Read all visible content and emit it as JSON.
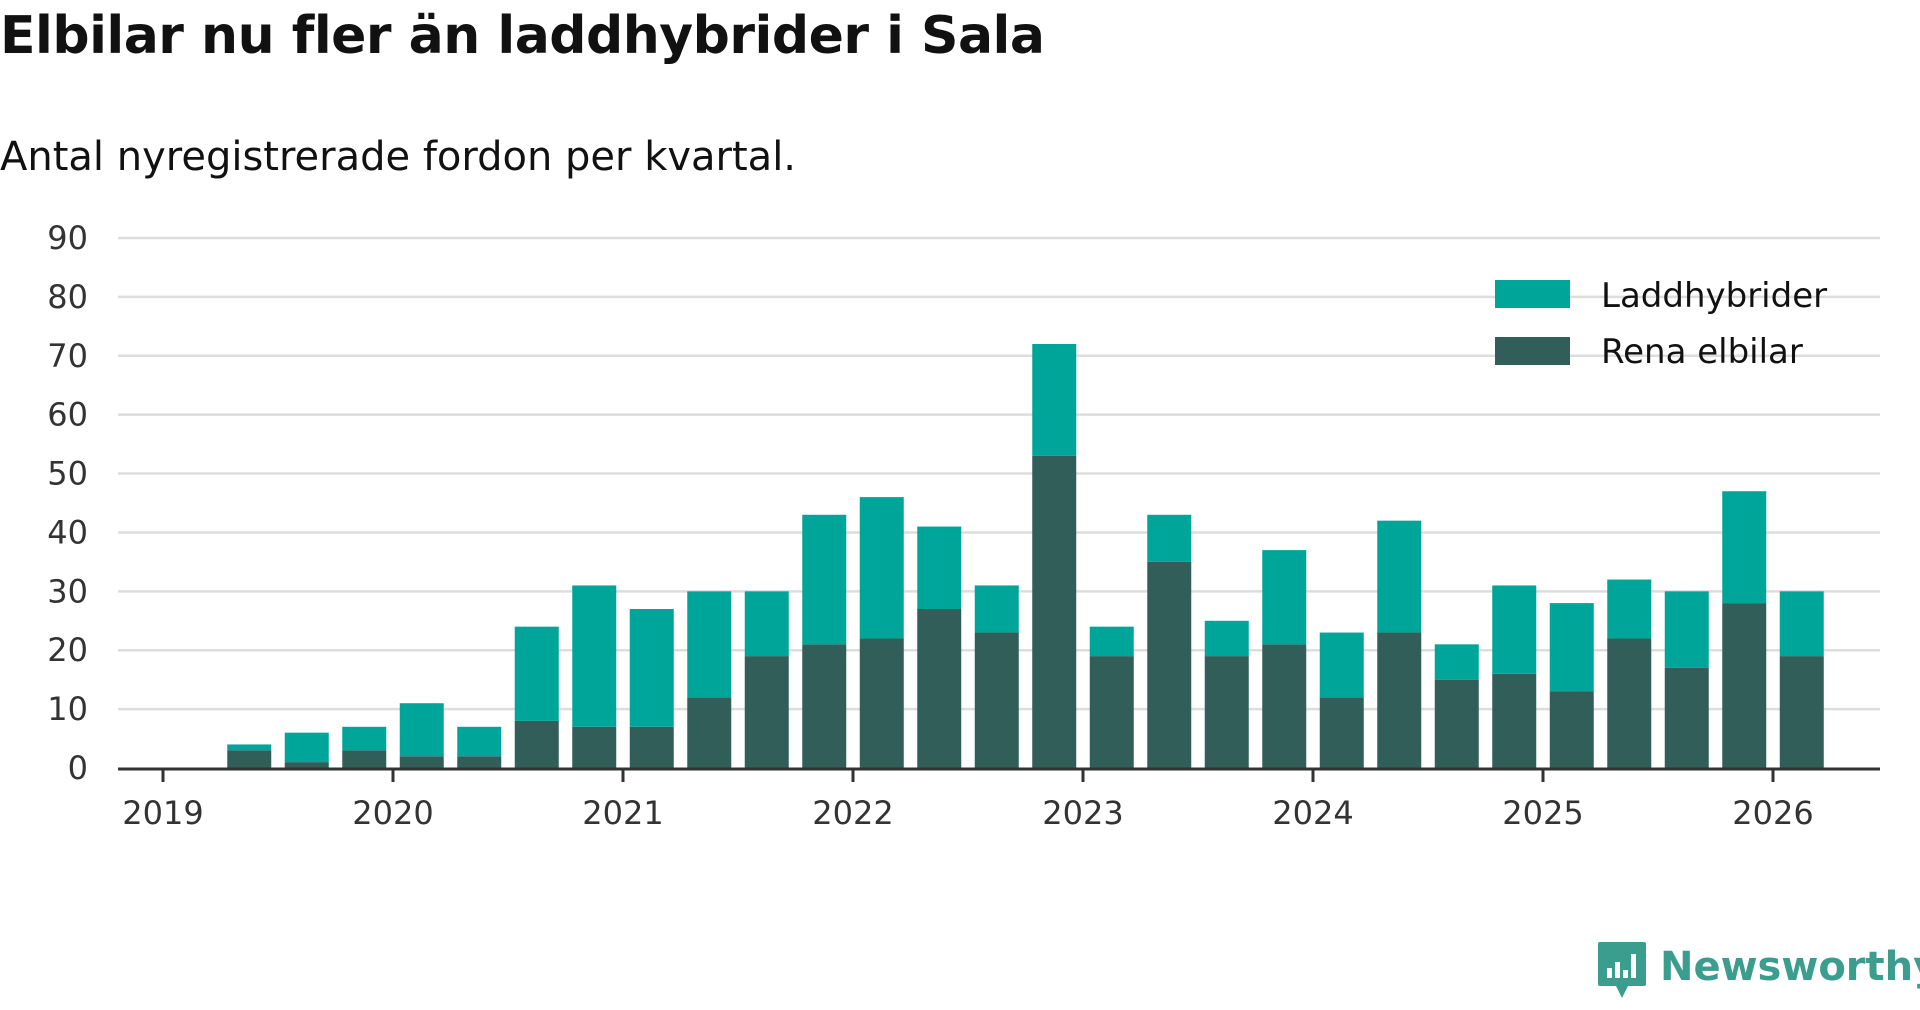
{
  "title": "Elbilar nu fler än laddhybrider i Sala",
  "subtitle": "Antal nyregistrerade fordon per kvartal.",
  "brand": "Newsworthy",
  "colors": {
    "laddhybrider": "#00a59a",
    "rena_elbilar": "#325e59",
    "grid": "#dddddd",
    "axis": "#333333"
  },
  "chart_data": {
    "type": "bar",
    "stacked": true,
    "x_tick_labels": [
      "2019",
      "2020",
      "2021",
      "2022",
      "2023",
      "2024",
      "2025",
      "2026"
    ],
    "ylim": [
      0,
      90
    ],
    "y_ticks": [
      0,
      10,
      20,
      30,
      40,
      50,
      60,
      70,
      80,
      90
    ],
    "categories": [
      "2019 Q1",
      "2019 Q2",
      "2019 Q3",
      "2019 Q4",
      "2020 Q1",
      "2020 Q2",
      "2020 Q3",
      "2020 Q4",
      "2021 Q1",
      "2021 Q2",
      "2021 Q3",
      "2021 Q4",
      "2022 Q1",
      "2022 Q2",
      "2022 Q3",
      "2022 Q4",
      "2023 Q1",
      "2023 Q2",
      "2023 Q3",
      "2023 Q4",
      "2024 Q1",
      "2024 Q2",
      "2024 Q3",
      "2024 Q4",
      "2025 Q1",
      "2025 Q2",
      "2025 Q3",
      "2025 Q4",
      "2026 Q1"
    ],
    "legend_position": "top-right",
    "series": [
      {
        "name": "Rena elbilar",
        "values": [
          0,
          3,
          1,
          3,
          2,
          2,
          8,
          7,
          7,
          12,
          19,
          21,
          22,
          27,
          23,
          53,
          19,
          35,
          19,
          21,
          12,
          23,
          15,
          16,
          13,
          22,
          17,
          28,
          19
        ]
      },
      {
        "name": "Laddhybrider",
        "values": [
          0,
          1,
          5,
          4,
          9,
          5,
          16,
          24,
          20,
          18,
          11,
          22,
          24,
          14,
          8,
          19,
          5,
          8,
          6,
          16,
          11,
          19,
          6,
          15,
          15,
          10,
          13,
          19,
          11
        ]
      }
    ]
  }
}
